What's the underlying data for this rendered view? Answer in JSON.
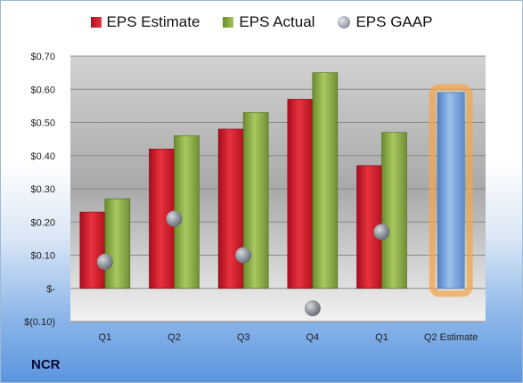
{
  "chart_data": {
    "type": "bar",
    "categories": [
      "Q1",
      "Q2",
      "Q3",
      "Q4",
      "Q1",
      "Q2 Estimate"
    ],
    "series": [
      {
        "name": "EPS Estimate",
        "values": [
          0.23,
          0.42,
          0.48,
          0.57,
          0.37,
          null
        ],
        "color": "#c8102e"
      },
      {
        "name": "EPS Actual",
        "values": [
          0.27,
          0.46,
          0.53,
          0.65,
          0.47,
          null
        ],
        "color": "#8db04a"
      },
      {
        "name": "EPS GAAP",
        "values": [
          0.08,
          0.21,
          0.1,
          -0.06,
          0.17,
          null
        ],
        "color": "#9aa0a8"
      }
    ],
    "projected": {
      "category": "Q2 Estimate",
      "value": 0.59,
      "color": "#6f9fd8",
      "glow": "#f4a64a"
    },
    "y_ticks": [
      {
        "value": 0.7,
        "label": "$0.70"
      },
      {
        "value": 0.6,
        "label": "$0.60"
      },
      {
        "value": 0.5,
        "label": "$0.50"
      },
      {
        "value": 0.4,
        "label": "$0.40"
      },
      {
        "value": 0.3,
        "label": "$0.30"
      },
      {
        "value": 0.2,
        "label": "$0.20"
      },
      {
        "value": 0.1,
        "label": "$0.10"
      },
      {
        "value": 0.0,
        "label": "$-"
      },
      {
        "value": -0.1,
        "label": "$(0.10)"
      }
    ],
    "ylim": [
      -0.1,
      0.7
    ],
    "grid": true,
    "legend_position": "top"
  },
  "legend": {
    "estimate_label": "EPS Estimate",
    "actual_label": "EPS Actual",
    "gaap_label": "EPS GAAP"
  },
  "company": "NCR"
}
